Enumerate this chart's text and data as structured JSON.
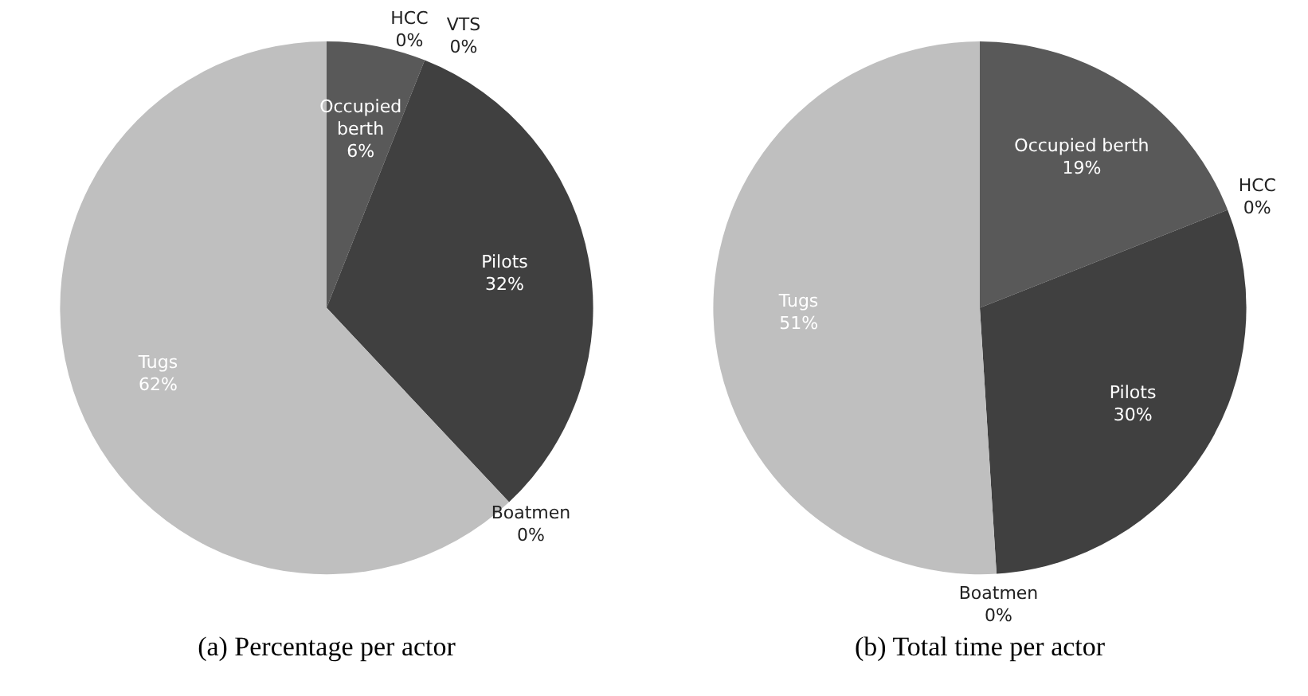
{
  "chart_data": [
    {
      "type": "pie",
      "title": "(a) Percentage per actor",
      "categories": [
        "Occupied berth",
        "HCC",
        "VTS",
        "Pilots",
        "Boatmen",
        "Tugs"
      ],
      "values": [
        6,
        0,
        0,
        32,
        0,
        62
      ],
      "colors": [
        "#595959",
        "#7f7f7f",
        "#a5a5a5",
        "#404040",
        "#262626",
        "#bfbfbf"
      ],
      "value_labels": [
        "6%",
        "0%",
        "0%",
        "32%",
        "0%",
        "62%"
      ],
      "legend": false
    },
    {
      "type": "pie",
      "title": "(b) Total time per actor",
      "categories": [
        "Occupied berth",
        "HCC",
        "Pilots",
        "Boatmen",
        "Tugs"
      ],
      "values": [
        19,
        0,
        30,
        0,
        51
      ],
      "colors": [
        "#595959",
        "#7f7f7f",
        "#404040",
        "#262626",
        "#bfbfbf"
      ],
      "value_labels": [
        "19%",
        "0%",
        "30%",
        "0%",
        "51%"
      ],
      "legend": false
    }
  ]
}
